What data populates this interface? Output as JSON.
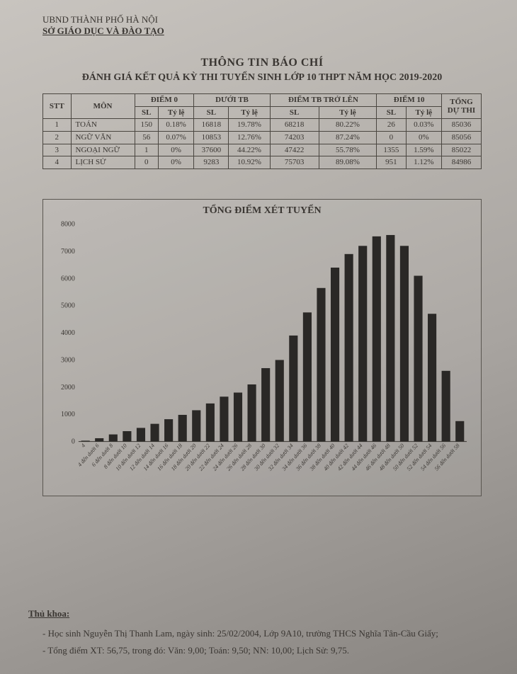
{
  "header": {
    "org": "UBND THÀNH PHỐ HÀ NỘI",
    "dept": "SỞ GIÁO DỤC VÀ ĐÀO TẠO"
  },
  "titles": {
    "t1": "THÔNG TIN BÁO CHÍ",
    "t2": "ĐÁNH GIÁ KẾT QUẢ KỲ THI TUYỂN SINH LỚP 10 THPT NĂM HỌC 2019-2020"
  },
  "table": {
    "head": {
      "stt": "STT",
      "mon": "MÔN",
      "g0": "ĐIỂM 0",
      "gduoi": "DƯỚI TB",
      "gtren": "ĐIỂM TB TRỞ LÊN",
      "g10": "ĐIỂM 10",
      "tong": "TỔNG DỰ THI",
      "sl": "SL",
      "tyle": "Tỷ lệ"
    },
    "rows": [
      {
        "idx": "1",
        "mon": "TOÁN",
        "sl0": "150",
        "t0": "0.18%",
        "sld": "16818",
        "td": "19.78%",
        "slt": "68218",
        "tt": "80.22%",
        "sl10": "26",
        "t10": "0.03%",
        "tong": "85036"
      },
      {
        "idx": "2",
        "mon": "NGỮ VĂN",
        "sl0": "56",
        "t0": "0.07%",
        "sld": "10853",
        "td": "12.76%",
        "slt": "74203",
        "tt": "87.24%",
        "sl10": "0",
        "t10": "0%",
        "tong": "85056"
      },
      {
        "idx": "3",
        "mon": "NGOẠI NGỮ",
        "sl0": "1",
        "t0": "0%",
        "sld": "37600",
        "td": "44.22%",
        "slt": "47422",
        "tt": "55.78%",
        "sl10": "1355",
        "t10": "1.59%",
        "tong": "85022"
      },
      {
        "idx": "4",
        "mon": "LỊCH SỬ",
        "sl0": "0",
        "t0": "0%",
        "sld": "9283",
        "td": "10.92%",
        "slt": "75703",
        "tt": "89.08%",
        "sl10": "951",
        "t10": "1.12%",
        "tong": "84986"
      }
    ]
  },
  "chart": {
    "type": "bar",
    "title": "TỔNG ĐIỂM XÉT TUYỂN",
    "categories": [
      "4",
      "4 đến dưới 6",
      "6 đến dưới 8",
      "8 đến dưới 10",
      "10 đến dưới 12",
      "12 đến dưới 14",
      "14 đến dưới 16",
      "16 đến dưới 18",
      "18 đến dưới 20",
      "20 đến dưới 22",
      "22 đến dưới 24",
      "24 đến dưới 26",
      "26 đến dưới 28",
      "28 đến dưới 30",
      "30 đến dưới 32",
      "32 đến dưới 34",
      "34 đến dưới 36",
      "36 đến dưới 38",
      "38 đến dưới 40",
      "40 đến dưới 42",
      "42 đến dưới 44",
      "44 đến dưới 46",
      "46 đến dưới 48",
      "48 đến dưới 50",
      "50 đến dưới 52",
      "52 đến dưới 54",
      "54 đến dưới 56",
      "56 đến dưới 58"
    ],
    "values": [
      30,
      120,
      260,
      380,
      500,
      650,
      820,
      980,
      1150,
      1400,
      1650,
      1800,
      2100,
      2700,
      3000,
      3900,
      4750,
      5650,
      6400,
      6900,
      7200,
      7550,
      7600,
      7200,
      6100,
      4700,
      2600,
      750
    ],
    "bar_color": "#2a2826",
    "background_color": "transparent",
    "axis_color": "#3a3632",
    "ylim": [
      0,
      8000
    ],
    "ytick_step": 1000,
    "label_fontsize": 10,
    "bar_width": 0.62,
    "title_fontsize": 14
  },
  "footer": {
    "heading": "Thủ khoa:",
    "line1": "- Học sinh Nguyễn Thị Thanh Lam, ngày sinh: 25/02/2004, Lớp 9A10, trường THCS Nghĩa Tân-Cầu Giấy;",
    "line2": "- Tổng điểm XT: 56,75, trong đó: Văn: 9,00; Toán: 9,50; NN: 10,00; Lịch Sử: 9,75."
  }
}
